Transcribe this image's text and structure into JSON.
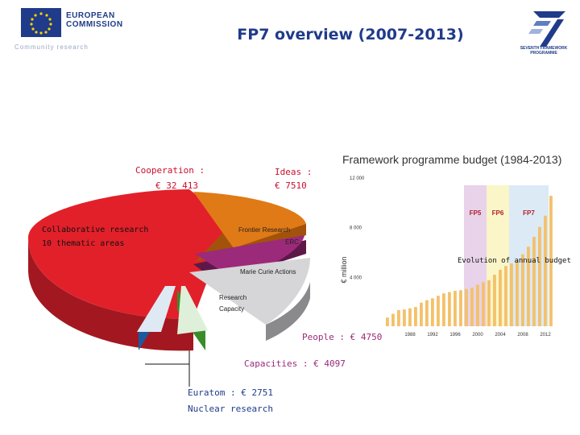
{
  "header": {
    "org_name": "EUROPEAN\nCOMMISSION",
    "org_sub": "Community research",
    "title": "FP7 overview (2007-2013)",
    "fp7_logo_text": "SEVENTH FRAMEWORK\nPROGRAMME"
  },
  "pie": {
    "cooperation_label": "Cooperation :",
    "cooperation_value": "€ 32 413",
    "ideas_label": "Ideas :",
    "ideas_value": "€ 7510",
    "collab": "Collaborative research",
    "thematic": "10 thematic areas",
    "frontier": "Frontier Research",
    "erc": "ERC",
    "marie": "Marie Curie Actions",
    "research_capacity_1": "Research",
    "research_capacity_2": "Capacity",
    "people": "People : € 4750",
    "capacities": "Capacities : € 4097",
    "euratom": "Euratom : € 2751",
    "nuclear": "Nuclear research",
    "colors": {
      "cooperation": "#e2202a",
      "ideas": "#e07a16",
      "people": "#9c2a7a",
      "capacities": "#c9c9cc",
      "euratom_blue": "#1c5aa0",
      "euratom_green": "#3a8c2a"
    }
  },
  "chart_data": {
    "type": "bar",
    "title": "Framework programme budget (1984-2013)",
    "ylabel": "€ million",
    "annotation": "Evolution of annual budget",
    "ylim": [
      0,
      12000
    ],
    "yticks": [
      "12 000",
      "8 000",
      "4 000"
    ],
    "yticks_values": [
      12000,
      8000,
      4000
    ],
    "xticks": [
      "1988",
      "1992",
      "1996",
      "2000",
      "2004",
      "2008",
      "2012"
    ],
    "xticks_values": [
      1988,
      1992,
      1996,
      2000,
      2004,
      2008,
      2012
    ],
    "bands": [
      {
        "name": "FP5",
        "from": 1998,
        "to": 2002,
        "color": "#e8d3ea"
      },
      {
        "name": "FP6",
        "from": 2002,
        "to": 2006,
        "color": "#fbf6c8"
      },
      {
        "name": "FP7",
        "from": 2006,
        "to": 2013,
        "color": "#dbeaf5"
      }
    ],
    "x": [
      1984,
      1985,
      1986,
      1987,
      1988,
      1989,
      1990,
      1991,
      1992,
      1993,
      1994,
      1995,
      1996,
      1997,
      1998,
      1999,
      2000,
      2001,
      2002,
      2003,
      2004,
      2005,
      2006,
      2007,
      2008,
      2009,
      2010,
      2011,
      2012,
      2013
    ],
    "values": [
      700,
      1000,
      1300,
      1350,
      1450,
      1550,
      1900,
      2100,
      2250,
      2450,
      2650,
      2750,
      2850,
      2900,
      3000,
      3100,
      3350,
      3550,
      3700,
      4150,
      4550,
      4850,
      5050,
      5250,
      5800,
      6400,
      7200,
      8000,
      8900,
      10500
    ],
    "bar_color": "#f4c16a"
  }
}
